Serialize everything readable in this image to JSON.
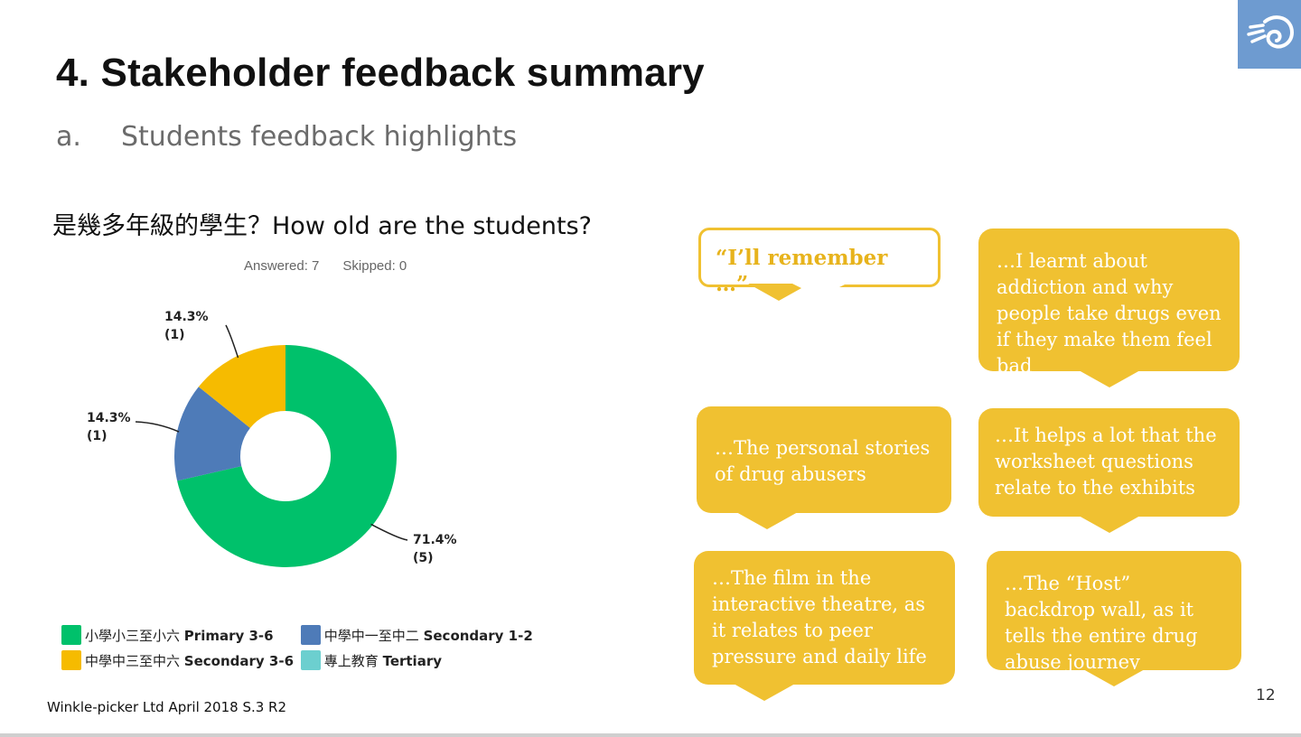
{
  "slide": {
    "title": "4. Stakeholder feedback summary",
    "subtitle_marker": "a.",
    "subtitle": "Students feedback highlights",
    "question": "是幾多年級的學生？How old are the students?",
    "answered": "Answered: 7",
    "skipped": "Skipped: 0",
    "footer": "Winkle-picker Ltd April 2018 S.3 R2",
    "page_number": "12",
    "logo_icon": "shell-logo-icon",
    "accent_color": "#6e9bd0",
    "bubble_color": "#f0c131"
  },
  "chart_data": {
    "type": "pie",
    "donut": true,
    "title": "",
    "categories": [
      "小學小三至小六 Primary 3-6",
      "中學中一至中二 Secondary 1-2",
      "中學中三至中六 Secondary 3-6",
      "專上教育 Tertiary"
    ],
    "series": [
      {
        "values": [
          5,
          1,
          1,
          0
        ],
        "percent": [
          71.4,
          14.3,
          14.3,
          0
        ],
        "data_labels": [
          "71.4%",
          "14.3%",
          "14.3%",
          ""
        ],
        "count_labels": [
          "(5)",
          "(1)",
          "(1)",
          ""
        ]
      }
    ],
    "colors": [
      "#00c16b",
      "#4e7bb8",
      "#f6bb00",
      "#6ccfcf"
    ],
    "legend": {
      "placement": "bottom-left",
      "items": [
        {
          "zh": "小學小三至小六",
          "en": "Primary 3-6",
          "color": "#00c16b"
        },
        {
          "zh": "中學中一至中二",
          "en": "Secondary 1-2",
          "color": "#4e7bb8"
        },
        {
          "zh": "中學中三至中六",
          "en": "Secondary 3-6",
          "color": "#f6bb00"
        },
        {
          "zh": "專上教育",
          "en": "Tertiary",
          "color": "#6ccfcf"
        }
      ]
    }
  },
  "quotes": [
    "“I’ll remember …”",
    "…I learnt about addiction and why people take drugs even if they make them feel bad",
    "…The personal stories of drug abusers",
    "…It helps a lot that the worksheet questions relate to the exhibits",
    "…The film in the interactive theatre, as it relates to peer pressure and daily life",
    "…The “Host” backdrop wall, as it tells the entire drug abuse journey"
  ]
}
